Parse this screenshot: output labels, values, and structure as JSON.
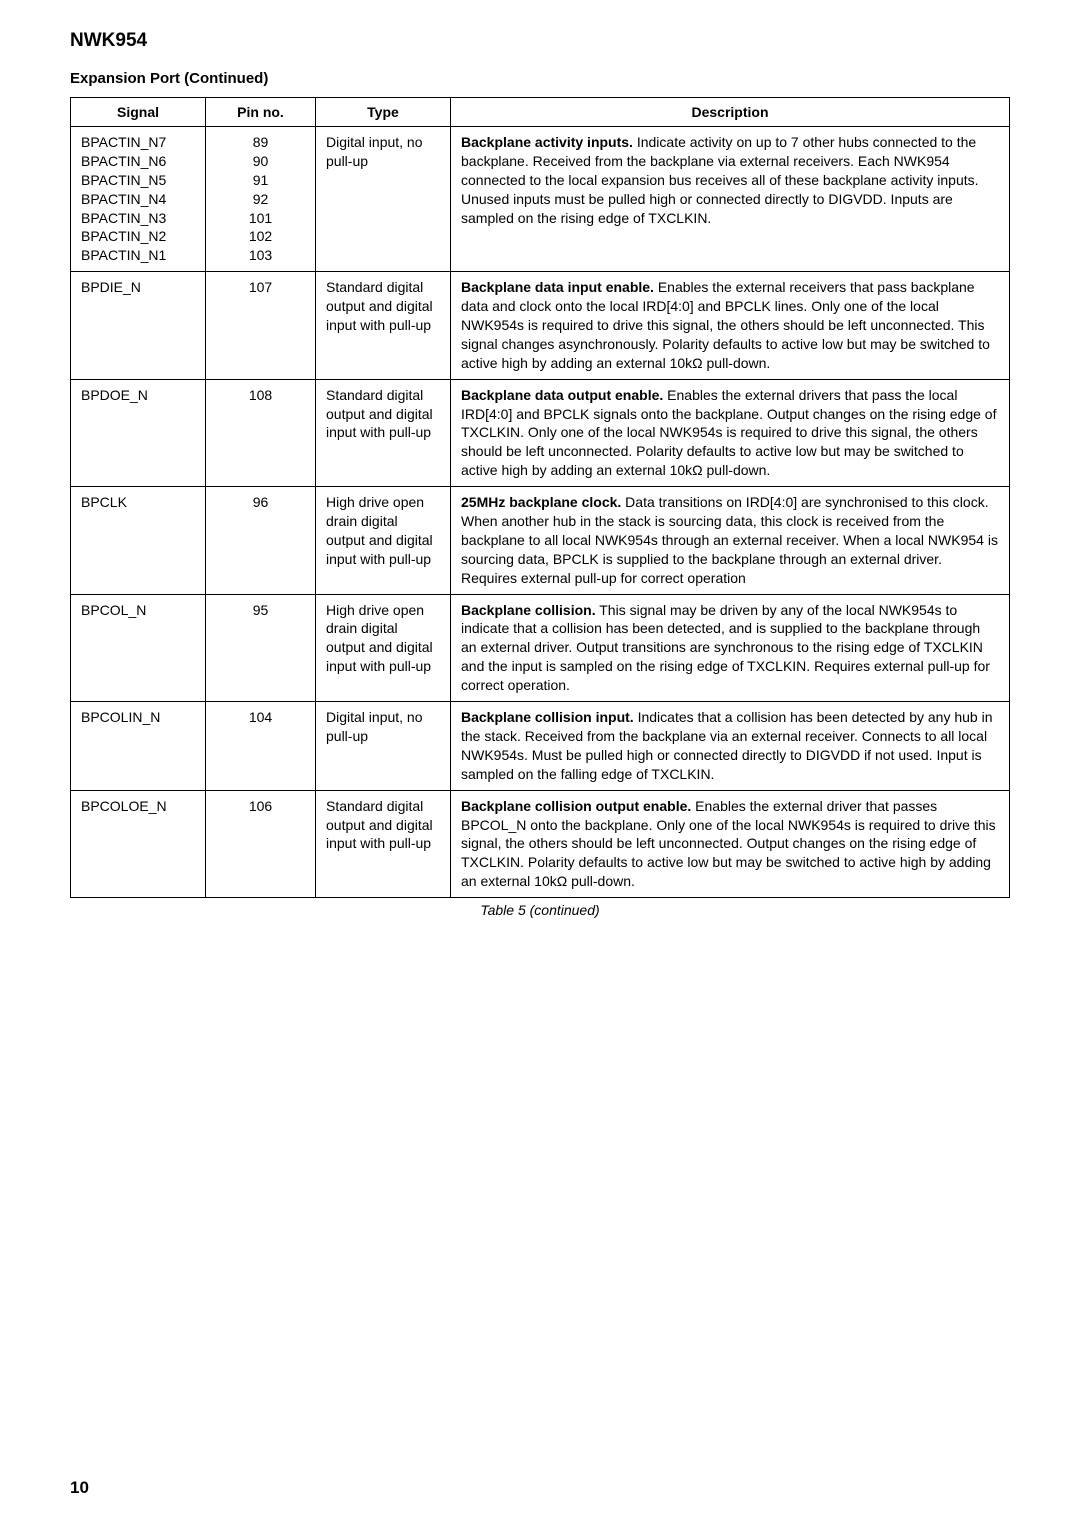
{
  "doc_title": "NWK954",
  "section_title": "Expansion Port (Continued)",
  "table_caption": "Table 5 (continued)",
  "page_number": "10",
  "headers": {
    "signal": "Signal",
    "pin": "Pin no.",
    "type": "Type",
    "description": "Description"
  },
  "rows": [
    {
      "signals": [
        "BPACTIN_N7",
        "BPACTIN_N6",
        "BPACTIN_N5",
        "BPACTIN_N4",
        "BPACTIN_N3",
        "BPACTIN_N2",
        "BPACTIN_N1"
      ],
      "pins": [
        "89",
        "90",
        "91",
        "92",
        "101",
        "102",
        "103"
      ],
      "type": "Digital input, no pull-up",
      "desc_bold": "Backplane activity inputs.",
      "desc": " Indicate activity on up to 7 other hubs connected to the backplane. Received from the backplane via external receivers. Each NWK954 connected to the local expansion bus receives all of these backplane activity inputs. Unused inputs must be pulled high or connected directly to DIGVDD. Inputs are sampled on the rising edge of TXCLKIN."
    },
    {
      "signals": [
        "BPDIE_N"
      ],
      "pins": [
        "107"
      ],
      "type": "Standard digital output and digital input with pull-up",
      "desc_bold": "Backplane data input enable.",
      "desc": " Enables the external receivers that pass backplane data and clock onto the local IRD[4:0] and BPCLK lines. Only one of the local NWK954s is required to drive this signal, the others should be left unconnected. This signal changes asynchronously. Polarity defaults to active low but may be switched to active high by adding an external 10kΩ pull-down."
    },
    {
      "signals": [
        "BPDOE_N"
      ],
      "pins": [
        "108"
      ],
      "type": "Standard digital output and digital input with pull-up",
      "desc_bold": "Backplane data output enable.",
      "desc": " Enables the external drivers that pass the local IRD[4:0] and BPCLK signals onto the backplane. Output changes on the rising edge of TXCLKIN. Only one of the local NWK954s is required to drive this signal, the others should be left unconnected. Polarity defaults to active low but may be switched to active high by adding an external 10kΩ pull-down."
    },
    {
      "signals": [
        "BPCLK"
      ],
      "pins": [
        "96"
      ],
      "type": "High drive open drain digital output and digital input with pull-up",
      "desc_bold": "25MHz backplane clock.",
      "desc": " Data transitions on IRD[4:0] are synchronised to this clock. When another hub in the stack is sourcing data, this clock is received from the backplane to all local NWK954s through an external receiver. When a local NWK954 is sourcing data, BPCLK is supplied to the backplane through an external driver. Requires external pull-up for correct operation"
    },
    {
      "signals": [
        "BPCOL_N"
      ],
      "pins": [
        "95"
      ],
      "type": "High drive open drain digital output and digital input with pull-up",
      "desc_bold": "Backplane collision.",
      "desc": " This signal may be driven by any of the local NWK954s to indicate that a collision has been detected, and is supplied to the backplane through an external driver. Output transitions are synchronous to the rising edge of TXCLKIN and the input is sampled on the rising edge of TXCLKIN. Requires external pull-up for correct operation."
    },
    {
      "signals": [
        "BPCOLIN_N"
      ],
      "pins": [
        "104"
      ],
      "type": "Digital input, no pull-up",
      "desc_bold": "Backplane collision input.",
      "desc": " Indicates that a collision has been detected by any hub in the stack. Received from the backplane via an external receiver. Connects to all local NWK954s. Must be pulled high or connected directly to DIGVDD if not used. Input is sampled on the falling edge of TXCLKIN."
    },
    {
      "signals": [
        "BPCOLOE_N"
      ],
      "pins": [
        "106"
      ],
      "type": "Standard digital output and digital input with pull-up",
      "desc_bold": "Backplane collision output enable.",
      "desc": " Enables the external driver that passes BPCOL_N onto the backplane. Only one of the local NWK954s is required to drive this signal, the others should be left unconnected. Output changes on the rising edge of TXCLKIN. Polarity defaults to active low but may be switched to active high by adding an external 10kΩ pull-down."
    }
  ]
}
